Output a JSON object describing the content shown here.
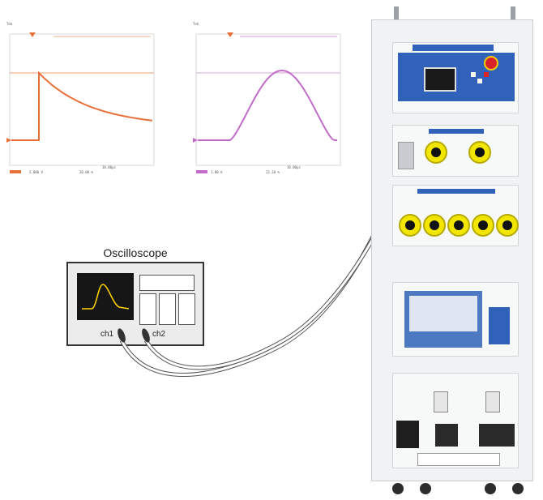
{
  "oscilloscope": {
    "title": "Oscilloscope",
    "ch1_label": "ch1",
    "ch2_label": "ch2"
  },
  "colors": {
    "waveform_left": "#e8703a",
    "waveform_right": "#c06cc8",
    "osc_trace": "#ffd400",
    "panel_blue": "#2f62b8",
    "knob_yellow": "#f2e600"
  },
  "screen_left": {
    "top_label": "Tek",
    "bottom_left": "2.000 V",
    "bottom_right": "10.00μs",
    "readout": "20.00 %"
  },
  "screen_right": {
    "top_label": "Tek",
    "bottom_left": "1.00 A",
    "bottom_right": "10.00μs",
    "readout": "22.20 %"
  }
}
